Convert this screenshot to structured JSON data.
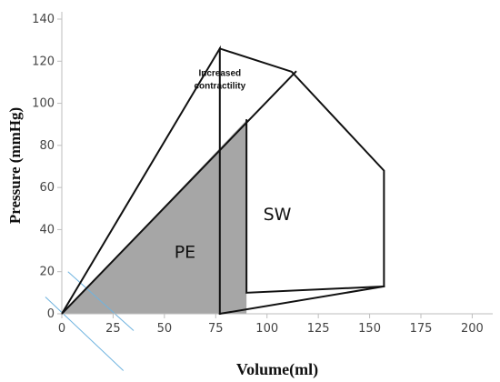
{
  "chart_data": {
    "type": "line",
    "xlabel": "Volume(ml)",
    "ylabel": "Pressure (mmHg)",
    "xlim": [
      0,
      210
    ],
    "ylim": [
      0,
      140
    ],
    "x_ticks": [
      0,
      25,
      50,
      75,
      100,
      125,
      150,
      175,
      200
    ],
    "y_ticks": [
      0,
      20,
      40,
      60,
      80,
      100,
      120,
      140
    ],
    "grid": false,
    "series": [
      {
        "values": [
          {
            "x": 0,
            "y": 0
          },
          {
            "x": 77,
            "y": 126
          },
          {
            "x": 77,
            "y": 0
          }
        ]
      },
      {
        "values": [
          {
            "x": 0,
            "y": 0
          },
          {
            "x": 114,
            "y": 115
          }
        ]
      },
      {
        "values": [
          {
            "x": 77,
            "y": 126
          },
          {
            "x": 112,
            "y": 115
          },
          {
            "x": 157,
            "y": 68
          },
          {
            "x": 157,
            "y": 13
          },
          {
            "x": 77,
            "y": 0
          }
        ]
      },
      {
        "values": [
          {
            "x": 90,
            "y": 92
          },
          {
            "x": 90,
            "y": 10
          },
          {
            "x": 157,
            "y": 13
          }
        ]
      }
    ],
    "shaded_region": {
      "label": "PE",
      "polygon": [
        {
          "x": 0,
          "y": 0
        },
        {
          "x": 90,
          "y": 92
        },
        {
          "x": 90,
          "y": 0
        }
      ]
    },
    "guide_lines": [
      {
        "x": [
          3,
          35
        ],
        "y": [
          20,
          -8
        ]
      },
      {
        "x": [
          -8,
          30
        ],
        "y": [
          8,
          -27
        ]
      }
    ],
    "annotations": [
      {
        "text": "Increased",
        "x": 77,
        "y": 113
      },
      {
        "text": "contractility",
        "x": 77,
        "y": 107
      },
      {
        "text": "SW",
        "x": 105,
        "y": 48
      }
    ],
    "colors": {
      "line": "#111111",
      "shade": "#a6a6a6",
      "guide": "#6fb3df",
      "axis": "#bdbdbd"
    }
  }
}
